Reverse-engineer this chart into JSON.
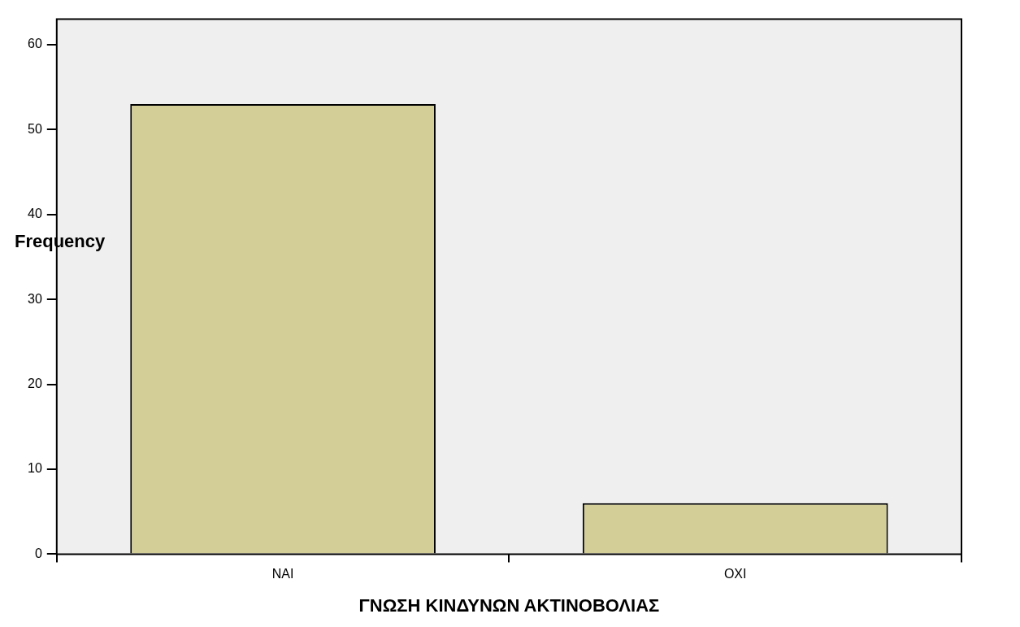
{
  "chart_data": {
    "type": "bar",
    "xlabel": "ΓΝΩΣΗ ΚΙΝΔΥΝΩΝ ΑΚΤΙΝΟΒΟΛΙΑΣ",
    "ylabel": "Frequency",
    "categories": [
      "NAI",
      "OXI"
    ],
    "values": [
      53,
      6
    ],
    "color": "#d3cd98",
    "ylim": [
      0,
      63
    ],
    "yticks": [
      0,
      10,
      20,
      30,
      40,
      50,
      60
    ],
    "grid": false,
    "legend": false
  }
}
